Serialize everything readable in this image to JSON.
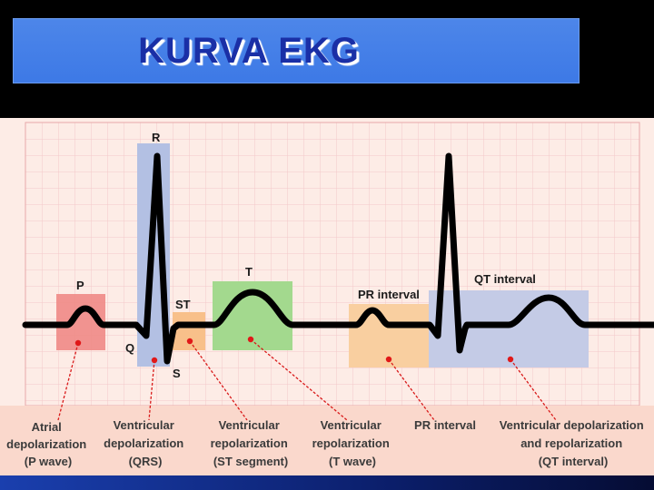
{
  "title": "KURVA EKG",
  "waves": {
    "p": "P",
    "q": "Q",
    "r": "R",
    "s": "S",
    "st": "ST",
    "t": "T",
    "pr_interval": "PR interval",
    "qt_interval": "QT interval"
  },
  "descriptions": [
    {
      "lines": [
        "Atrial",
        "depolarization",
        "(P wave)"
      ]
    },
    {
      "lines": [
        "Ventricular",
        "depolarization",
        "(QRS)"
      ]
    },
    {
      "lines": [
        "Ventricular",
        "repolarization",
        "(ST segment)"
      ]
    },
    {
      "lines": [
        "Ventricular",
        "repolarization",
        "(T wave)"
      ]
    },
    {
      "lines": [
        "PR interval"
      ]
    },
    {
      "lines": [
        "Ventricular depolarization",
        "and repolarization",
        "(QT interval)"
      ]
    }
  ],
  "colors": {
    "grid_bg": "#fde9e4",
    "grid_line": "#f3c2c2",
    "p_box": "#f08080",
    "qrs_box": "#b8c5e3",
    "st_box": "#f7c08a",
    "t_box": "#9fd78e",
    "pr_box": "#f9cfa0",
    "qt_box": "#c6cde4",
    "marker": "#e01818",
    "title": "#1a2fa6",
    "title_bar": "#4a84e8"
  }
}
